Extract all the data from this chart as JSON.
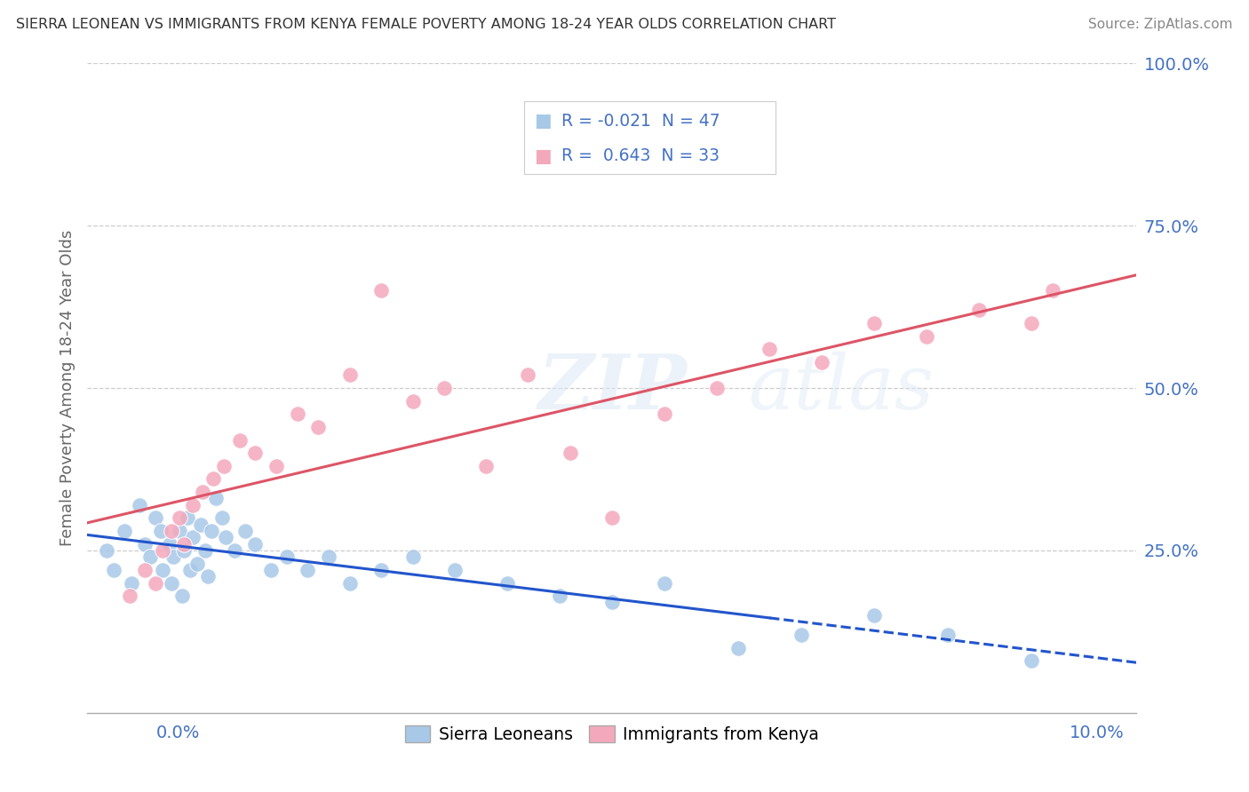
{
  "title": "SIERRA LEONEAN VS IMMIGRANTS FROM KENYA FEMALE POVERTY AMONG 18-24 YEAR OLDS CORRELATION CHART",
  "source": "Source: ZipAtlas.com",
  "ylabel": "Female Poverty Among 18-24 Year Olds",
  "xlim": [
    0.0,
    10.0
  ],
  "ylim": [
    0.0,
    100.0
  ],
  "yticks": [
    0,
    25,
    50,
    75,
    100
  ],
  "ytick_labels": [
    "",
    "25.0%",
    "50.0%",
    "75.0%",
    "100.0%"
  ],
  "r_sl": -0.021,
  "n_sl": 47,
  "r_kenya": 0.643,
  "n_kenya": 33,
  "color_blue": "#a8c8e8",
  "color_pink": "#f4a8bc",
  "line_blue": "#2255cc",
  "line_pink": "#dd5566",
  "watermark_zip": "ZIP",
  "watermark_atlas": "atlas",
  "background_color": "#ffffff",
  "grid_color": "#cccccc",
  "title_color": "#333333",
  "axis_tick_color": "#4472c4",
  "ylabel_color": "#666666",
  "legend_text_color": "#4472c4",
  "sierra_x": [
    0.18,
    0.25,
    0.35,
    0.42,
    0.5,
    0.55,
    0.6,
    0.65,
    0.7,
    0.72,
    0.78,
    0.8,
    0.82,
    0.88,
    0.9,
    0.92,
    0.95,
    0.98,
    1.0,
    1.05,
    1.08,
    1.12,
    1.15,
    1.18,
    1.22,
    1.28,
    1.32,
    1.4,
    1.5,
    1.6,
    1.75,
    1.9,
    2.1,
    2.3,
    2.5,
    2.8,
    3.1,
    3.5,
    4.0,
    4.5,
    5.0,
    5.5,
    6.2,
    6.8,
    7.5,
    8.2,
    9.0
  ],
  "sierra_y": [
    25,
    22,
    28,
    20,
    32,
    26,
    24,
    30,
    28,
    22,
    26,
    20,
    24,
    28,
    18,
    25,
    30,
    22,
    27,
    23,
    29,
    25,
    21,
    28,
    33,
    30,
    27,
    25,
    28,
    26,
    22,
    24,
    22,
    24,
    20,
    22,
    24,
    22,
    20,
    18,
    17,
    20,
    10,
    12,
    15,
    12,
    8
  ],
  "kenya_x": [
    0.4,
    0.55,
    0.65,
    0.72,
    0.8,
    0.88,
    0.92,
    1.0,
    1.1,
    1.2,
    1.3,
    1.45,
    1.6,
    1.8,
    2.0,
    2.2,
    2.5,
    2.8,
    3.1,
    3.4,
    3.8,
    4.2,
    4.6,
    5.0,
    5.5,
    6.0,
    6.5,
    7.0,
    7.5,
    8.0,
    8.5,
    9.0,
    9.2
  ],
  "kenya_y": [
    18,
    22,
    20,
    25,
    28,
    30,
    26,
    32,
    34,
    36,
    38,
    42,
    40,
    38,
    46,
    44,
    52,
    65,
    48,
    50,
    38,
    52,
    40,
    30,
    46,
    50,
    56,
    54,
    60,
    58,
    62,
    60,
    65
  ]
}
